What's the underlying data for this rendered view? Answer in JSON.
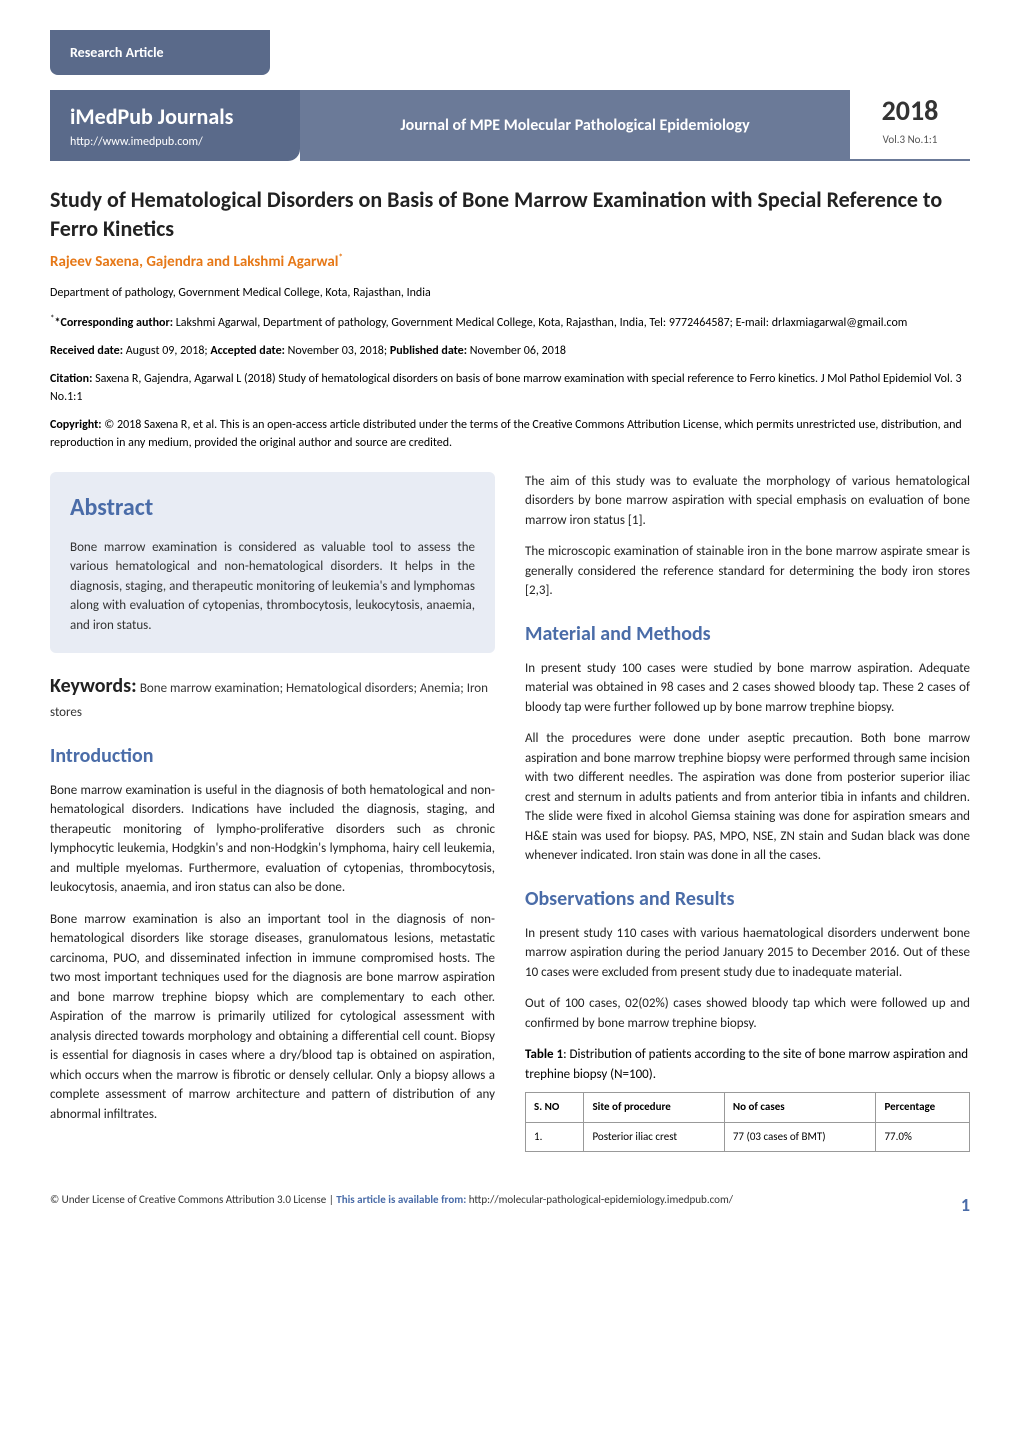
{
  "header": {
    "article_type": "Research Article",
    "journal_brand": "iMedPub Journals",
    "journal_url": "http://www.imedpub.com/",
    "journal_name": "Journal of MPE Molecular Pathological Epidemiology",
    "year": "2018",
    "volume": "Vol.3 No.1:1"
  },
  "article": {
    "title": "Study of Hematological Disorders on Basis of Bone Marrow Examination with Special Reference to Ferro Kinetics",
    "authors": "Rajeev Saxena, Gajendra and Lakshmi Agarwal",
    "author_sup": "*",
    "affiliation": "Department of pathology, Government Medical College, Kota, Rajasthan, India",
    "corresponding_label": "*Corresponding author:",
    "corresponding_text": " Lakshmi Agarwal, Department of pathology, Government Medical College, Kota, Rajasthan, India, Tel: 9772464587; E-mail: drlaxmiagarwal@gmail.com",
    "received_label": "Received date:",
    "received": " August 09, 2018; ",
    "accepted_label": "Accepted date:",
    "accepted": " November 03, 2018; ",
    "published_label": "Published date:",
    "published": " November 06, 2018",
    "citation_label": "Citation:",
    "citation_text": " Saxena R, Gajendra, Agarwal L (2018) Study of hematological disorders on basis of bone marrow examination with special reference to Ferro kinetics. J Mol Pathol Epidemiol Vol. 3 No.1:1",
    "copyright_label": "Copyright:",
    "copyright_text": " © 2018 Saxena R, et al. This is an open-access article distributed under the terms of the Creative Commons Attribution License, which permits unrestricted use, distribution, and reproduction in any medium, provided the original author and source are credited."
  },
  "abstract": {
    "heading": "Abstract",
    "text": "Bone marrow examination is considered as valuable tool to assess the various hematological and non-hematological disorders. It helps in the diagnosis, staging, and therapeutic monitoring of leukemia's and lymphomas along with evaluation of cytopenias, thrombocytosis, leukocytosis, anaemia, and iron status."
  },
  "keywords": {
    "label": "Keywords:",
    "text": " Bone marrow examination; Hematological disorders; Anemia; Iron stores"
  },
  "sections": {
    "introduction": {
      "heading": "Introduction",
      "p1": "Bone marrow examination is useful in the diagnosis of both hematological and non-hematological disorders. Indications have included the diagnosis, staging, and therapeutic monitoring of lympho-proliferative disorders such as chronic lymphocytic leukemia, Hodgkin's and non-Hodgkin's lymphoma, hairy cell leukemia, and multiple myelomas. Furthermore, evaluation of cytopenias, thrombocytosis, leukocytosis, anaemia, and iron status can also be done.",
      "p2": "Bone marrow examination is also an important tool in the diagnosis of non-hematological disorders like storage diseases, granulomatous lesions, metastatic carcinoma, PUO, and disseminated infection in immune compromised hosts. The two most important techniques used for the diagnosis are bone marrow aspiration and bone marrow trephine biopsy which are complementary to each other. Aspiration of the marrow is primarily utilized for cytological assessment with analysis directed towards morphology and obtaining a differential cell count. Biopsy is essential for diagnosis in cases where a dry/blood tap is obtained on aspiration, which occurs when the marrow is fibrotic or densely cellular. Only a biopsy allows a complete assessment of marrow architecture and pattern of distribution of any abnormal infiltrates."
    },
    "right_intro": {
      "p1": "The aim of this study was to evaluate the morphology of various hematological disorders by bone marrow aspiration with special emphasis on evaluation of bone marrow iron status [1].",
      "p2": "The microscopic examination of stainable iron in the bone marrow aspirate smear is generally considered the reference standard for determining the body iron stores [2,3]."
    },
    "materials": {
      "heading": "Material and Methods",
      "p1": "In present study 100 cases were studied by bone marrow aspiration. Adequate material was obtained in 98 cases and 2 cases showed bloody tap. These 2 cases of bloody tap were further followed up by bone marrow trephine biopsy.",
      "p2": "All the procedures were done under aseptic precaution. Both bone marrow aspiration and bone marrow trephine biopsy were performed through same incision with two different needles. The aspiration was done from posterior superior iliac crest and sternum in adults patients and from anterior tibia in infants and children. The slide were fixed in alcohol Giemsa staining was done for aspiration smears and H&E stain was used for biopsy. PAS, MPO, NSE, ZN stain and Sudan black was done whenever indicated. Iron stain was done in all the cases."
    },
    "results": {
      "heading": "Observations and Results",
      "p1": "In present study 110 cases with various haematological disorders underwent bone marrow aspiration during the period January 2015 to December 2016. Out of these 10 cases were excluded from present study due to inadequate material.",
      "p2": "Out of 100 cases, 02(02%) cases showed bloody tap which were followed up and confirmed by bone marrow trephine biopsy."
    }
  },
  "table1": {
    "caption_label": "Table 1",
    "caption_text": ": Distribution of patients according to the site of bone marrow aspiration and trephine biopsy (N=100).",
    "headers": [
      "S. NO",
      "Site of procedure",
      "No of cases",
      "Percentage"
    ],
    "rows": [
      [
        "1.",
        "Posterior iliac crest",
        "77 (03 cases of BMT)",
        "77.0%"
      ]
    ]
  },
  "footer": {
    "license": "© Under License of Creative Commons Attribution 3.0 License | ",
    "available_label": "This article is available from: ",
    "available_url": "http://molecular-pathological-epidemiology.imedpub.com/",
    "page": "1"
  },
  "styling": {
    "header_bg": "#5a6a8a",
    "accent_color": "#4a6ca8",
    "author_color": "#e67817",
    "abstract_bg": "#e8ecf4",
    "body_font_size": 13,
    "title_font_size": 22
  }
}
